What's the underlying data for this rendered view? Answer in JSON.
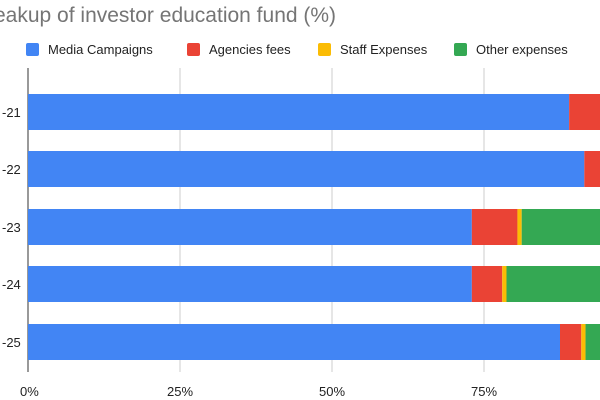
{
  "chart_data": {
    "type": "bar",
    "orientation": "horizontal",
    "stacked": true,
    "title": "eakup of investor education fund (%)",
    "categories": [
      "-21",
      "-22",
      "-23",
      "-24",
      "-25"
    ],
    "series": [
      {
        "name": "Media Campaigns",
        "color": "#4285f4",
        "values": [
          89,
          91.5,
          73,
          73,
          87.5
        ]
      },
      {
        "name": "Agencies fees",
        "color": "#ea4335",
        "values": [
          11,
          8.5,
          7.5,
          5,
          3.5
        ]
      },
      {
        "name": "Staff Expenses",
        "color": "#fbbc04",
        "values": [
          0,
          0,
          0.7,
          0.7,
          0.7
        ]
      },
      {
        "name": "Other expenses",
        "color": "#34a853",
        "values": [
          0,
          0,
          18.8,
          21.3,
          8.3
        ]
      }
    ],
    "xlim": [
      0,
      100
    ],
    "xticks": [
      "0%",
      "25%",
      "50%",
      "75%"
    ],
    "grid": true,
    "legend": "top"
  }
}
